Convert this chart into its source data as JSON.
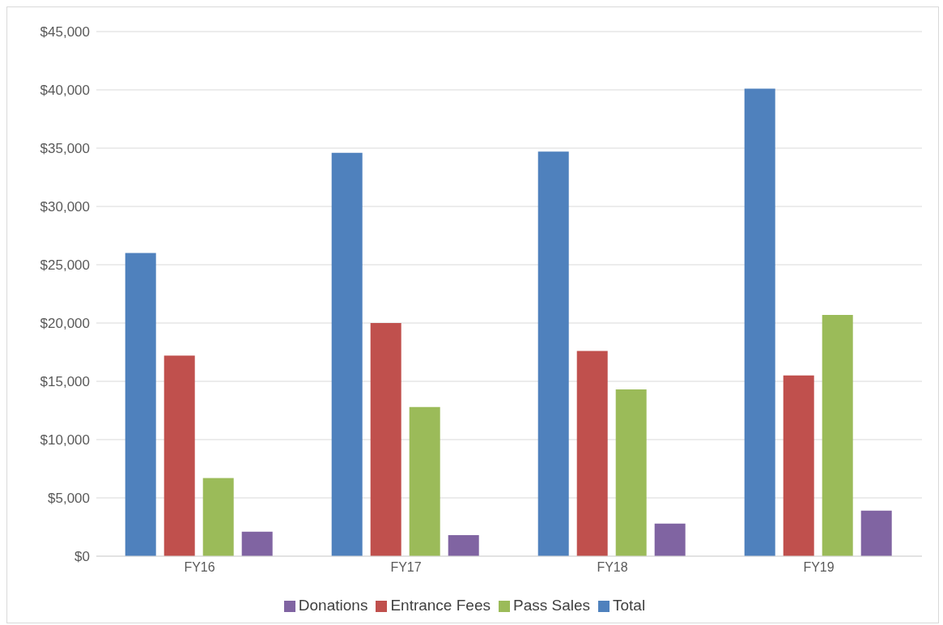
{
  "chart_data": {
    "type": "bar",
    "categories": [
      "FY16",
      "FY17",
      "FY18",
      "FY19"
    ],
    "series": [
      {
        "name": "Total",
        "color": "#4f81bd",
        "values": [
          26000,
          34600,
          34700,
          40100
        ]
      },
      {
        "name": "Entrance Fees",
        "color": "#c0504d",
        "values": [
          17200,
          20000,
          17600,
          15500
        ]
      },
      {
        "name": "Pass Sales",
        "color": "#9bbb59",
        "values": [
          6700,
          12800,
          14300,
          20700
        ]
      },
      {
        "name": "Donations",
        "color": "#8064a2",
        "values": [
          2100,
          1800,
          2800,
          3900
        ]
      }
    ],
    "ylim": [
      0,
      45000
    ],
    "yticks": [
      {
        "value": 0,
        "label": "$0"
      },
      {
        "value": 5000,
        "label": "$5,000"
      },
      {
        "value": 10000,
        "label": "$10,000"
      },
      {
        "value": 15000,
        "label": "$15,000"
      },
      {
        "value": 20000,
        "label": "$20,000"
      },
      {
        "value": 25000,
        "label": "$25,000"
      },
      {
        "value": 30000,
        "label": "$30,000"
      },
      {
        "value": 35000,
        "label": "$35,000"
      },
      {
        "value": 40000,
        "label": "$40,000"
      },
      {
        "value": 45000,
        "label": "$45,000"
      }
    ],
    "grid": "y",
    "legend": "bottom"
  }
}
